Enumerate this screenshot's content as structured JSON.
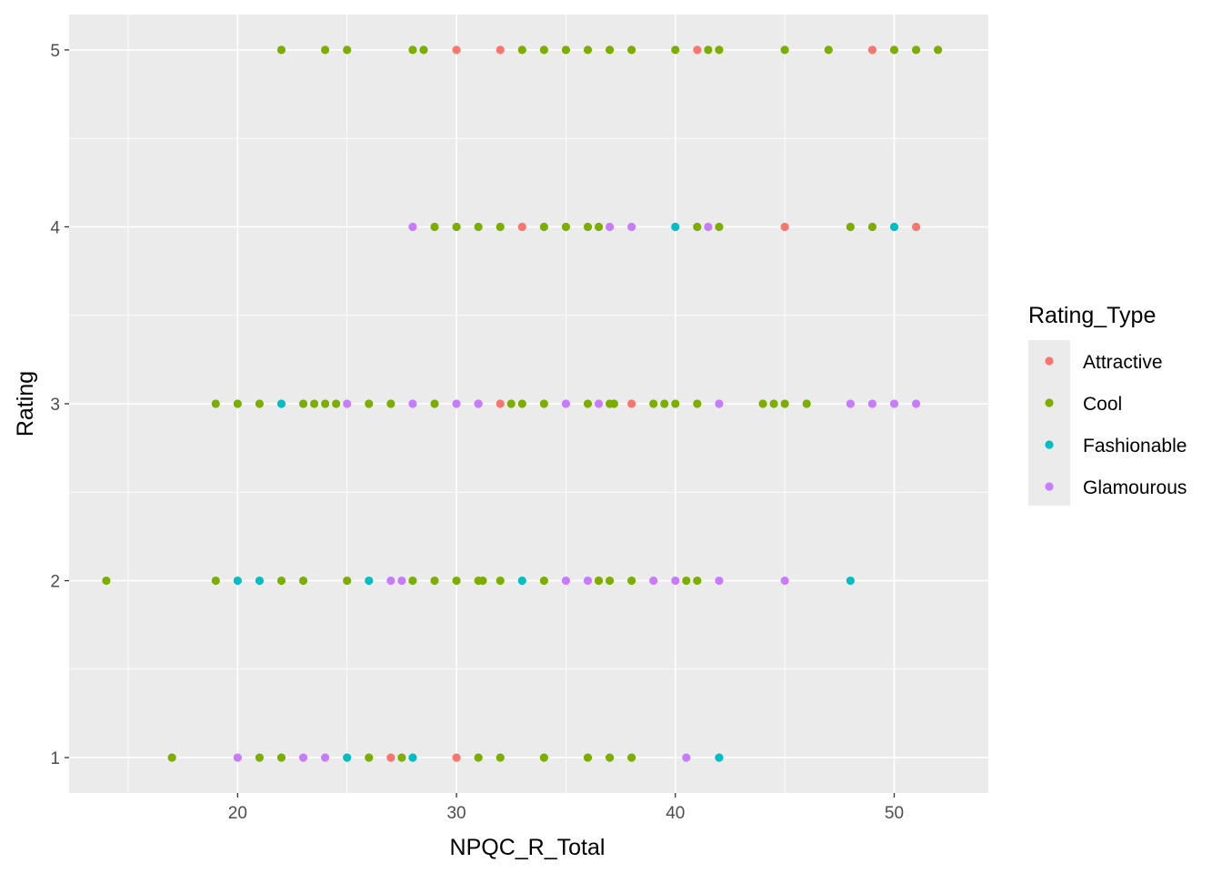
{
  "chart_data": {
    "type": "scatter",
    "title": "",
    "xlabel": "NPQC_R_Total",
    "ylabel": "Rating",
    "xlim": [
      12.3,
      54.3
    ],
    "ylim": [
      0.8,
      5.2
    ],
    "x_ticks": [
      20,
      30,
      40,
      50
    ],
    "y_ticks": [
      1,
      2,
      3,
      4,
      5
    ],
    "grid": true,
    "legend": {
      "title": "Rating_Type",
      "position": "right"
    },
    "series": [
      {
        "name": "Attractive",
        "color": "#F8766D",
        "points": [
          [
            30,
            5
          ],
          [
            32,
            5
          ],
          [
            41,
            5
          ],
          [
            49,
            5
          ],
          [
            33,
            4
          ],
          [
            45,
            4
          ],
          [
            51,
            4
          ],
          [
            32,
            3
          ],
          [
            38,
            3
          ],
          [
            36.5,
            2
          ],
          [
            27,
            1
          ],
          [
            30,
            1
          ]
        ]
      },
      {
        "name": "Cool",
        "color": "#7CAE00",
        "points": [
          [
            22,
            5
          ],
          [
            24,
            5
          ],
          [
            25,
            5
          ],
          [
            28,
            5
          ],
          [
            28.5,
            5
          ],
          [
            33,
            5
          ],
          [
            34,
            5
          ],
          [
            35,
            5
          ],
          [
            36,
            5
          ],
          [
            37,
            5
          ],
          [
            38,
            5
          ],
          [
            40,
            5
          ],
          [
            41.5,
            5
          ],
          [
            42,
            5
          ],
          [
            45,
            5
          ],
          [
            47,
            5
          ],
          [
            50,
            5
          ],
          [
            51,
            5
          ],
          [
            52,
            5
          ],
          [
            29,
            4
          ],
          [
            30,
            4
          ],
          [
            31,
            4
          ],
          [
            32,
            4
          ],
          [
            34,
            4
          ],
          [
            35,
            4
          ],
          [
            36,
            4
          ],
          [
            36.5,
            4
          ],
          [
            41,
            4
          ],
          [
            42,
            4
          ],
          [
            48,
            4
          ],
          [
            49,
            4
          ],
          [
            19,
            3
          ],
          [
            20,
            3
          ],
          [
            21,
            3
          ],
          [
            23,
            3
          ],
          [
            23.5,
            3
          ],
          [
            24,
            3
          ],
          [
            24.5,
            3
          ],
          [
            26,
            3
          ],
          [
            27,
            3
          ],
          [
            29,
            3
          ],
          [
            31,
            3
          ],
          [
            32.5,
            3
          ],
          [
            33,
            3
          ],
          [
            34,
            3
          ],
          [
            36,
            3
          ],
          [
            37,
            3
          ],
          [
            37.2,
            3
          ],
          [
            39,
            3
          ],
          [
            39.5,
            3
          ],
          [
            40,
            3
          ],
          [
            41,
            3
          ],
          [
            44,
            3
          ],
          [
            44.5,
            3
          ],
          [
            45,
            3
          ],
          [
            46,
            3
          ],
          [
            14,
            2
          ],
          [
            19,
            2
          ],
          [
            22,
            2
          ],
          [
            23,
            2
          ],
          [
            25,
            2
          ],
          [
            28,
            2
          ],
          [
            29,
            2
          ],
          [
            30,
            2
          ],
          [
            31,
            2
          ],
          [
            31.2,
            2
          ],
          [
            32,
            2
          ],
          [
            34,
            2
          ],
          [
            36.5,
            2
          ],
          [
            37,
            2
          ],
          [
            38,
            2
          ],
          [
            40.5,
            2
          ],
          [
            41,
            2
          ],
          [
            17,
            1
          ],
          [
            21,
            1
          ],
          [
            22,
            1
          ],
          [
            26,
            1
          ],
          [
            27.5,
            1
          ],
          [
            31,
            1
          ],
          [
            32,
            1
          ],
          [
            34,
            1
          ],
          [
            36,
            1
          ],
          [
            37,
            1
          ],
          [
            38,
            1
          ]
        ]
      },
      {
        "name": "Fashionable",
        "color": "#00BFC4",
        "points": [
          [
            40,
            4
          ],
          [
            50,
            4
          ],
          [
            22,
            3
          ],
          [
            20,
            2
          ],
          [
            21,
            2
          ],
          [
            26,
            2
          ],
          [
            33,
            2
          ],
          [
            48,
            2
          ],
          [
            25,
            1
          ],
          [
            28,
            1
          ],
          [
            42,
            1
          ]
        ]
      },
      {
        "name": "Glamourous",
        "color": "#C77CFF",
        "points": [
          [
            28,
            4
          ],
          [
            37,
            4
          ],
          [
            38,
            4
          ],
          [
            41.5,
            4
          ],
          [
            25,
            3
          ],
          [
            28,
            3
          ],
          [
            30,
            3
          ],
          [
            31,
            3
          ],
          [
            35,
            3
          ],
          [
            36.5,
            3
          ],
          [
            42,
            3
          ],
          [
            48,
            3
          ],
          [
            49,
            3
          ],
          [
            50,
            3
          ],
          [
            51,
            3
          ],
          [
            27,
            2
          ],
          [
            27.5,
            2
          ],
          [
            35,
            2
          ],
          [
            36,
            2
          ],
          [
            39,
            2
          ],
          [
            40,
            2
          ],
          [
            42,
            2
          ],
          [
            45,
            2
          ],
          [
            20,
            1
          ],
          [
            23,
            1
          ],
          [
            24,
            1
          ],
          [
            40.5,
            1
          ]
        ]
      }
    ]
  },
  "theme": {
    "panel_background": "#EBEBEB",
    "grid_major": "#FFFFFF",
    "legend_key_background": "#EBEBEB"
  }
}
